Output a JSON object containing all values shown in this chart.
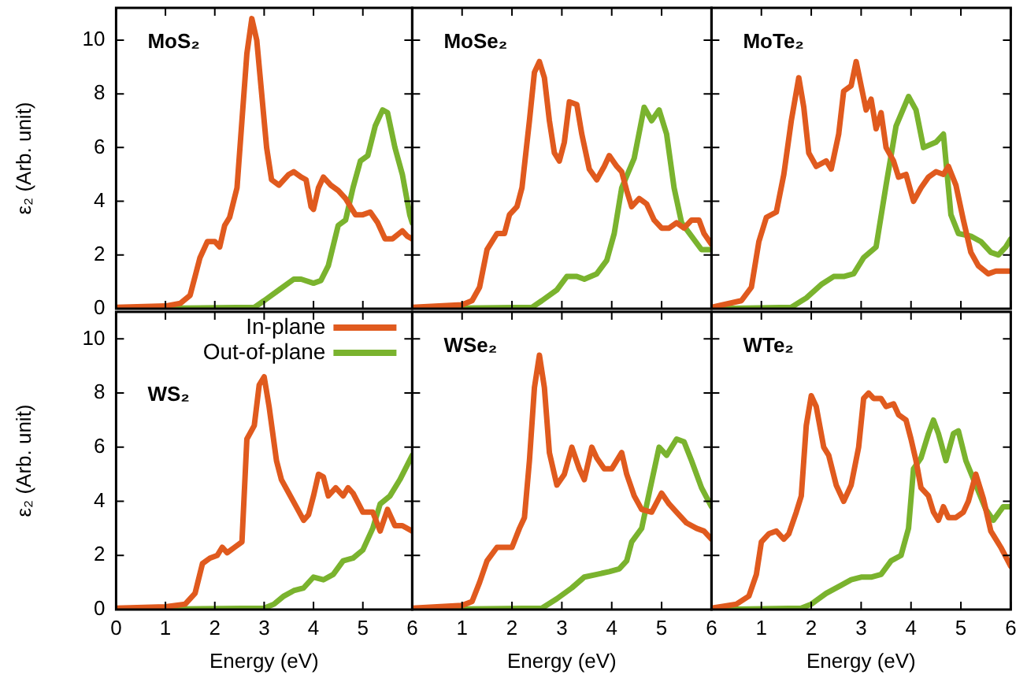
{
  "chart_data": [
    {
      "type": "line",
      "title": "MoS₂",
      "ylabel": "ε₂ (Arb. unit)",
      "xlim": [
        0,
        6
      ],
      "xticks": [
        0,
        1,
        2,
        3,
        4,
        5,
        6
      ],
      "ylim": [
        0,
        11.2
      ],
      "yticks": [
        0,
        2,
        4,
        6,
        8,
        10
      ],
      "tick_labels": "y",
      "series": [
        {
          "color": "#e05a1e",
          "x": [
            0,
            1,
            1.3,
            1.5,
            1.6,
            1.7,
            1.85,
            2.0,
            2.1,
            2.2,
            2.3,
            2.45,
            2.55,
            2.65,
            2.75,
            2.85,
            2.95,
            3.05,
            3.15,
            3.3,
            3.5,
            3.6,
            3.75,
            3.85,
            3.95,
            4.0,
            4.1,
            4.2,
            4.35,
            4.5,
            4.65,
            4.85,
            5.0,
            5.15,
            5.3,
            5.45,
            5.6,
            5.8,
            5.9,
            6
          ],
          "values": [
            0.05,
            0.1,
            0.2,
            0.5,
            1.2,
            1.9,
            2.5,
            2.5,
            2.3,
            3.1,
            3.4,
            4.5,
            7,
            9.5,
            10.8,
            10,
            8,
            6,
            4.8,
            4.6,
            5.0,
            5.1,
            4.9,
            4.8,
            3.8,
            3.7,
            4.5,
            4.9,
            4.6,
            4.4,
            4.1,
            3.5,
            3.5,
            3.6,
            3.2,
            2.6,
            2.6,
            2.9,
            2.7,
            2.6
          ]
        },
        {
          "color": "#7ab32e",
          "x": [
            0,
            2.8,
            3.0,
            3.3,
            3.6,
            3.75,
            4.0,
            4.15,
            4.3,
            4.5,
            4.65,
            4.8,
            4.95,
            5.1,
            5.25,
            5.4,
            5.5,
            5.65,
            5.8,
            5.95,
            6
          ],
          "values": [
            0,
            0.05,
            0.3,
            0.7,
            1.1,
            1.1,
            0.95,
            1.05,
            1.6,
            3.1,
            3.3,
            4.5,
            5.5,
            5.7,
            6.8,
            7.4,
            7.3,
            6,
            5,
            3.5,
            3.2
          ]
        }
      ]
    },
    {
      "type": "line",
      "title": "MoSe₂",
      "xlim": [
        0,
        6
      ],
      "xticks": [
        1,
        2,
        3,
        4,
        5,
        6
      ],
      "ylim": [
        0,
        11.2
      ],
      "yticks": [
        0,
        2,
        4,
        6,
        8,
        10
      ],
      "tick_labels": false,
      "series": [
        {
          "color": "#e05a1e",
          "x": [
            0,
            1,
            1.2,
            1.35,
            1.5,
            1.7,
            1.85,
            1.95,
            2.1,
            2.2,
            2.35,
            2.45,
            2.55,
            2.65,
            2.75,
            2.85,
            2.95,
            3.05,
            3.15,
            3.3,
            3.4,
            3.55,
            3.7,
            3.85,
            3.95,
            4.1,
            4.2,
            4.3,
            4.4,
            4.55,
            4.7,
            4.85,
            5.0,
            5.15,
            5.3,
            5.45,
            5.6,
            5.75,
            5.85,
            6
          ],
          "values": [
            0.05,
            0.15,
            0.3,
            0.8,
            2.2,
            2.8,
            2.8,
            3.5,
            3.8,
            4.5,
            7,
            8.8,
            9.2,
            8.6,
            7,
            5.8,
            5.5,
            6.2,
            7.7,
            7.6,
            6.5,
            5.2,
            4.8,
            5.3,
            5.7,
            5.3,
            5.1,
            4.4,
            3.8,
            4.1,
            3.9,
            3.3,
            3.0,
            3.0,
            3.2,
            3.0,
            3.3,
            3.3,
            2.8,
            2.4
          ]
        },
        {
          "color": "#7ab32e",
          "x": [
            0,
            2.4,
            2.6,
            2.9,
            3.1,
            3.3,
            3.45,
            3.7,
            3.9,
            4.05,
            4.2,
            4.45,
            4.65,
            4.8,
            4.95,
            5.1,
            5.25,
            5.4,
            5.6,
            5.8,
            6
          ],
          "values": [
            0,
            0.05,
            0.3,
            0.7,
            1.2,
            1.2,
            1.1,
            1.3,
            1.8,
            2.8,
            4.5,
            5.6,
            7.5,
            7.0,
            7.4,
            6.5,
            4.5,
            3.2,
            2.7,
            2.2,
            2.2
          ]
        }
      ]
    },
    {
      "type": "line",
      "title": "MoTe₂",
      "xlim": [
        0,
        6
      ],
      "xticks": [
        1,
        2,
        3,
        4,
        5,
        6
      ],
      "ylim": [
        0,
        11.2
      ],
      "yticks": [
        0,
        2,
        4,
        6,
        8,
        10
      ],
      "tick_labels": false,
      "series": [
        {
          "color": "#e05a1e",
          "x": [
            0,
            0.6,
            0.8,
            0.95,
            1.1,
            1.3,
            1.45,
            1.6,
            1.75,
            1.85,
            1.95,
            2.1,
            2.3,
            2.4,
            2.55,
            2.65,
            2.8,
            2.9,
            3.0,
            3.1,
            3.2,
            3.3,
            3.4,
            3.5,
            3.65,
            3.75,
            3.9,
            4.05,
            4.2,
            4.35,
            4.5,
            4.65,
            4.75,
            4.9,
            5.05,
            5.2,
            5.35,
            5.55,
            5.7,
            6
          ],
          "values": [
            0.05,
            0.3,
            0.8,
            2.5,
            3.4,
            3.6,
            5,
            7,
            8.6,
            7.5,
            5.8,
            5.3,
            5.5,
            5.2,
            6.5,
            8.1,
            8.3,
            9.2,
            8.3,
            7.4,
            7.8,
            6.7,
            7.3,
            6.0,
            5.5,
            4.9,
            5.0,
            4.0,
            4.5,
            4.9,
            5.1,
            5.0,
            5.3,
            4.6,
            3.3,
            2.1,
            1.6,
            1.3,
            1.4,
            1.4
          ]
        },
        {
          "color": "#7ab32e",
          "x": [
            0,
            1.6,
            1.9,
            2.2,
            2.45,
            2.65,
            2.85,
            3.05,
            3.3,
            3.5,
            3.7,
            3.95,
            4.1,
            4.25,
            4.5,
            4.65,
            4.8,
            4.95,
            5.2,
            5.4,
            5.6,
            5.75,
            5.9,
            6
          ],
          "values": [
            0,
            0.05,
            0.4,
            0.9,
            1.2,
            1.2,
            1.3,
            1.9,
            2.3,
            4.6,
            6.8,
            7.9,
            7.4,
            6,
            6.2,
            6.5,
            3.5,
            2.8,
            2.7,
            2.5,
            2.1,
            2.0,
            2.3,
            2.6
          ]
        }
      ]
    },
    {
      "type": "line",
      "title": "WS₂",
      "xlabel": "Energy (eV)",
      "ylabel": "ε₂ (Arb. unit)",
      "xlim": [
        0,
        6
      ],
      "xticks": [
        0,
        1,
        2,
        3,
        4,
        5,
        6
      ],
      "ylim": [
        0,
        11
      ],
      "yticks": [
        0,
        2,
        4,
        6,
        8,
        10
      ],
      "legend": "top right",
      "series": [
        {
          "name": "In-plane",
          "color": "#e05a1e",
          "x": [
            0,
            1,
            1.4,
            1.6,
            1.75,
            1.9,
            2.05,
            2.15,
            2.25,
            2.4,
            2.55,
            2.65,
            2.8,
            2.9,
            3.0,
            3.1,
            3.25,
            3.35,
            3.5,
            3.65,
            3.8,
            3.9,
            4.0,
            4.1,
            4.2,
            4.3,
            4.45,
            4.6,
            4.7,
            4.8,
            5.0,
            5.2,
            5.35,
            5.5,
            5.65,
            5.8,
            6
          ],
          "values": [
            0.05,
            0.1,
            0.2,
            0.6,
            1.7,
            1.9,
            2.0,
            2.3,
            2.1,
            2.3,
            2.5,
            6.3,
            6.8,
            8.3,
            8.6,
            7.5,
            5.5,
            4.8,
            4.3,
            3.8,
            3.3,
            3.5,
            4.2,
            5.0,
            4.9,
            4.2,
            4.5,
            4.2,
            4.5,
            4.3,
            3.6,
            3.6,
            2.9,
            3.7,
            3.1,
            3.1,
            2.9
          ]
        },
        {
          "name": "Out-of-plane",
          "color": "#7ab32e",
          "x": [
            0,
            3.0,
            3.2,
            3.4,
            3.6,
            3.8,
            4.0,
            4.2,
            4.4,
            4.6,
            4.8,
            5.0,
            5.2,
            5.35,
            5.55,
            5.75,
            6
          ],
          "values": [
            0,
            0.05,
            0.2,
            0.5,
            0.7,
            0.8,
            1.2,
            1.1,
            1.3,
            1.8,
            1.9,
            2.2,
            3.0,
            3.9,
            4.2,
            4.8,
            5.7
          ]
        }
      ]
    },
    {
      "type": "line",
      "title": "WSe₂",
      "xlabel": "Energy (eV)",
      "xlim": [
        0,
        6
      ],
      "xticks": [
        1,
        2,
        3,
        4,
        5,
        6
      ],
      "ylim": [
        0,
        11
      ],
      "yticks": [
        0,
        2,
        4,
        6,
        8,
        10
      ],
      "tick_labels": "x",
      "series": [
        {
          "color": "#e05a1e",
          "x": [
            0,
            1,
            1.2,
            1.35,
            1.5,
            1.7,
            1.85,
            2.0,
            2.15,
            2.25,
            2.35,
            2.45,
            2.55,
            2.65,
            2.75,
            2.9,
            3.05,
            3.2,
            3.35,
            3.45,
            3.6,
            3.7,
            3.85,
            4.0,
            4.2,
            4.3,
            4.45,
            4.6,
            4.8,
            5.0,
            5.15,
            5.3,
            5.5,
            5.7,
            5.85,
            6
          ],
          "values": [
            0.05,
            0.15,
            0.3,
            1.0,
            1.8,
            2.3,
            2.3,
            2.3,
            3.0,
            3.4,
            5.5,
            8.2,
            9.4,
            8.2,
            5.8,
            4.6,
            5.0,
            6.0,
            5.2,
            4.8,
            6.0,
            5.6,
            5.2,
            5.2,
            5.8,
            5.0,
            4.2,
            3.7,
            3.6,
            4.3,
            3.9,
            3.6,
            3.2,
            3.0,
            2.9,
            2.6
          ]
        },
        {
          "color": "#7ab32e",
          "x": [
            0,
            2.6,
            2.9,
            3.2,
            3.45,
            3.7,
            3.95,
            4.15,
            4.3,
            4.4,
            4.6,
            4.75,
            4.95,
            5.1,
            5.3,
            5.45,
            5.6,
            5.8,
            6
          ],
          "values": [
            0,
            0.05,
            0.4,
            0.8,
            1.2,
            1.3,
            1.4,
            1.5,
            1.8,
            2.5,
            3.0,
            4.3,
            6.0,
            5.7,
            6.3,
            6.2,
            5.5,
            4.5,
            3.8
          ]
        }
      ]
    },
    {
      "type": "line",
      "title": "WTe₂",
      "xlabel": "Energy (eV)",
      "xlim": [
        0,
        6
      ],
      "xticks": [
        1,
        2,
        3,
        4,
        5,
        6
      ],
      "ylim": [
        0,
        11
      ],
      "yticks": [
        0,
        2,
        4,
        6,
        8,
        10
      ],
      "tick_labels": "x",
      "series": [
        {
          "color": "#e05a1e",
          "x": [
            0,
            0.5,
            0.75,
            0.9,
            1.0,
            1.15,
            1.3,
            1.45,
            1.55,
            1.7,
            1.8,
            1.9,
            2.0,
            2.1,
            2.25,
            2.35,
            2.5,
            2.65,
            2.8,
            2.95,
            3.05,
            3.15,
            3.25,
            3.4,
            3.5,
            3.65,
            3.75,
            3.9,
            4.0,
            4.1,
            4.2,
            4.35,
            4.45,
            4.55,
            4.65,
            4.75,
            4.9,
            5.05,
            5.15,
            5.3,
            5.45,
            5.6,
            5.8,
            6
          ],
          "values": [
            0.05,
            0.2,
            0.5,
            1.3,
            2.5,
            2.8,
            2.9,
            2.6,
            2.8,
            3.6,
            4.2,
            6.8,
            7.9,
            7.5,
            6.0,
            5.7,
            4.6,
            4.0,
            4.6,
            6.0,
            7.8,
            8.0,
            7.8,
            7.8,
            7.5,
            7.6,
            7.2,
            7.0,
            6.3,
            5.5,
            4.5,
            4.2,
            3.6,
            3.3,
            3.8,
            3.4,
            3.4,
            3.6,
            4.0,
            5.0,
            4.1,
            2.9,
            2.3,
            1.6
          ]
        },
        {
          "color": "#7ab32e",
          "x": [
            0,
            1.8,
            2.0,
            2.3,
            2.6,
            2.8,
            3.0,
            3.2,
            3.4,
            3.6,
            3.8,
            3.95,
            4.05,
            4.2,
            4.35,
            4.45,
            4.55,
            4.7,
            4.85,
            4.95,
            5.1,
            5.3,
            5.5,
            5.65,
            5.85,
            6
          ],
          "values": [
            0,
            0.05,
            0.2,
            0.6,
            0.9,
            1.1,
            1.2,
            1.2,
            1.3,
            1.8,
            2.0,
            3.0,
            5.2,
            5.6,
            6.5,
            7.0,
            6.5,
            5.5,
            6.5,
            6.6,
            5.5,
            4.6,
            3.7,
            3.3,
            3.8,
            3.8
          ]
        }
      ]
    }
  ]
}
